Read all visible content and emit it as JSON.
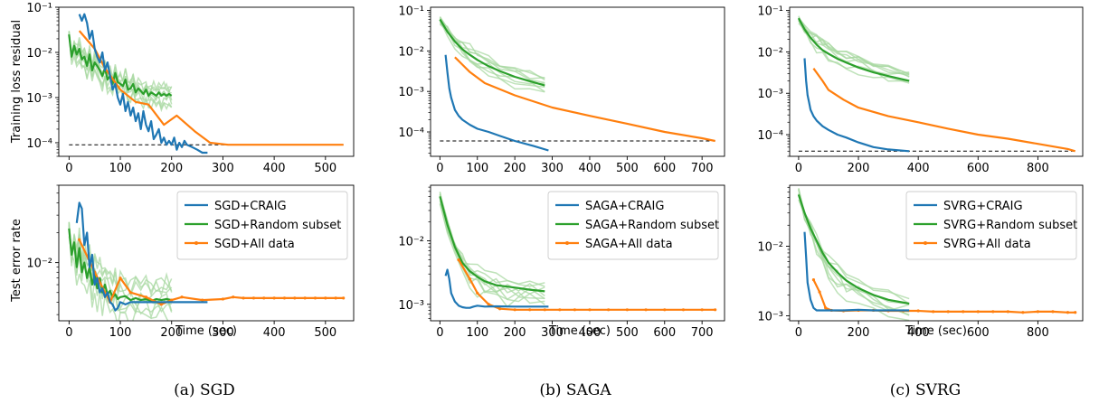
{
  "colors": {
    "craig": "#1f77b4",
    "random": "#2ca02c",
    "random_light": "#a8d8a2",
    "all": "#ff7f0e",
    "opt": "#000000"
  },
  "captions": [
    "(a) SGD",
    "(b) SAGA",
    "(c) SVRG"
  ],
  "labels": {
    "train_ylabel": "Training loss residual",
    "test_ylabel": "Test error rate",
    "xlabel": "Time (sec)"
  },
  "chart_data": [
    {
      "type": "line",
      "panel": "SGD-train",
      "yscale": "log",
      "xlim": [
        -20,
        555
      ],
      "ylim": [
        5e-05,
        0.1
      ],
      "xticks": [
        0,
        100,
        200,
        300,
        400,
        500
      ],
      "yticks": [
        {
          "v": 0.1,
          "label": "10⁻¹"
        },
        {
          "v": 0.01,
          "label": "10⁻²"
        },
        {
          "v": 0.001,
          "label": "10⁻³"
        },
        {
          "v": 0.0001,
          "label": "10⁻⁴"
        }
      ],
      "optimum": {
        "y": 9e-05,
        "x": [
          0,
          535
        ]
      },
      "series": [
        {
          "key": "craig",
          "x": [
            20,
            25,
            30,
            35,
            40,
            45,
            50,
            55,
            60,
            65,
            70,
            75,
            80,
            85,
            90,
            95,
            100,
            105,
            110,
            115,
            120,
            125,
            130,
            135,
            140,
            145,
            150,
            155,
            160,
            165,
            170,
            175,
            180,
            185,
            190,
            195,
            200,
            205,
            210,
            215,
            220,
            225,
            230,
            240,
            250,
            260,
            270
          ],
          "y": [
            0.07,
            0.05,
            0.07,
            0.045,
            0.02,
            0.03,
            0.012,
            0.008,
            0.006,
            0.01,
            0.004,
            0.006,
            0.003,
            0.0015,
            0.002,
            0.001,
            0.0007,
            0.0012,
            0.0005,
            0.0008,
            0.0004,
            0.0006,
            0.0003,
            0.00045,
            0.0002,
            0.0005,
            0.00025,
            0.00018,
            0.0003,
            0.00012,
            0.00015,
            0.0002,
            0.0001,
            0.00013,
            9e-05,
            0.00011,
            9e-05,
            0.00013,
            7e-05,
            0.0001,
            8e-05,
            0.00011,
            9e-05,
            8e-05,
            7e-05,
            6e-05,
            6e-05
          ]
        },
        {
          "key": "random",
          "x": [
            0,
            5,
            10,
            15,
            20,
            25,
            30,
            35,
            40,
            45,
            50,
            55,
            60,
            65,
            70,
            75,
            80,
            85,
            90,
            95,
            100,
            105,
            110,
            115,
            120,
            125,
            130,
            135,
            140,
            145,
            150,
            155,
            160,
            165,
            170,
            175,
            180,
            185,
            190,
            195,
            200
          ],
          "y": [
            0.025,
            0.008,
            0.014,
            0.009,
            0.012,
            0.007,
            0.008,
            0.005,
            0.009,
            0.004,
            0.006,
            0.005,
            0.004,
            0.003,
            0.0045,
            0.0025,
            0.003,
            0.002,
            0.0035,
            0.0022,
            0.002,
            0.0018,
            0.0025,
            0.0015,
            0.0016,
            0.002,
            0.0013,
            0.0016,
            0.0014,
            0.0012,
            0.0015,
            0.0011,
            0.0013,
            0.0012,
            0.0011,
            0.0013,
            0.0011,
            0.0012,
            0.0011,
            0.0012,
            0.0011
          ]
        },
        {
          "key": "all",
          "x": [
            20,
            50,
            70,
            100,
            130,
            155,
            185,
            210,
            245,
            275,
            310,
            340,
            400,
            450,
            500,
            535
          ],
          "y": [
            0.03,
            0.012,
            0.0045,
            0.0015,
            0.0008,
            0.0007,
            0.00025,
            0.0004,
            0.00018,
            0.0001,
            9e-05,
            9e-05,
            9e-05,
            9e-05,
            9e-05,
            9e-05
          ]
        }
      ]
    },
    {
      "type": "line",
      "panel": "SGD-test",
      "yscale": "log",
      "xlim": [
        -20,
        555
      ],
      "ylim": [
        0.0026,
        0.06
      ],
      "xticks": [
        0,
        100,
        200,
        300,
        400,
        500
      ],
      "yticks": [
        {
          "v": 0.01,
          "label": "10⁻²"
        }
      ],
      "series": [
        {
          "key": "craig",
          "x": [
            15,
            20,
            25,
            30,
            35,
            40,
            45,
            50,
            55,
            60,
            65,
            70,
            75,
            80,
            85,
            90,
            95,
            100,
            110,
            120,
            130,
            150,
            200,
            250,
            270
          ],
          "y": [
            0.025,
            0.04,
            0.035,
            0.015,
            0.02,
            0.009,
            0.012,
            0.006,
            0.007,
            0.005,
            0.0055,
            0.0045,
            0.005,
            0.004,
            0.0038,
            0.0033,
            0.0035,
            0.004,
            0.0038,
            0.004,
            0.004,
            0.004,
            0.004,
            0.004,
            0.004
          ]
        },
        {
          "key": "random",
          "x": [
            0,
            5,
            10,
            15,
            20,
            25,
            30,
            35,
            40,
            45,
            50,
            55,
            60,
            65,
            70,
            75,
            80,
            85,
            90,
            95,
            100,
            110,
            120,
            130,
            140,
            150,
            160,
            170,
            180,
            190,
            200
          ],
          "y": [
            0.022,
            0.012,
            0.016,
            0.009,
            0.014,
            0.008,
            0.01,
            0.007,
            0.009,
            0.006,
            0.0075,
            0.0055,
            0.007,
            0.005,
            0.006,
            0.0048,
            0.0052,
            0.0045,
            0.0048,
            0.0043,
            0.0045,
            0.0046,
            0.0042,
            0.0044,
            0.0042,
            0.0043,
            0.0041,
            0.0043,
            0.0042,
            0.0043,
            0.0042
          ]
        },
        {
          "key": "all",
          "x": [
            20,
            50,
            80,
            100,
            120,
            150,
            180,
            200,
            220,
            260,
            300,
            320,
            340,
            360,
            380,
            400,
            420,
            440,
            460,
            480,
            500,
            520,
            535
          ],
          "y": [
            0.017,
            0.008,
            0.004,
            0.007,
            0.005,
            0.0045,
            0.0038,
            0.0042,
            0.0045,
            0.0042,
            0.0043,
            0.0045,
            0.0044,
            0.0044,
            0.0044,
            0.0044,
            0.0044,
            0.0044,
            0.0044,
            0.0044,
            0.0044,
            0.0044,
            0.0044
          ]
        }
      ],
      "legend": [
        "SGD+CRAIG",
        "SGD+Random subset",
        "SGD+All data"
      ]
    },
    {
      "type": "line",
      "panel": "SAGA-train",
      "yscale": "log",
      "xlim": [
        -25,
        760
      ],
      "ylim": [
        2.5e-05,
        0.12
      ],
      "xticks": [
        0,
        100,
        200,
        300,
        400,
        500,
        600,
        700
      ],
      "yticks": [
        {
          "v": 0.1,
          "label": "10⁻¹"
        },
        {
          "v": 0.01,
          "label": "10⁻²"
        },
        {
          "v": 0.001,
          "label": "10⁻³"
        },
        {
          "v": 0.0001,
          "label": "10⁻⁴"
        }
      ],
      "optimum": {
        "y": 6e-05,
        "x": [
          0,
          735
        ]
      },
      "series": [
        {
          "key": "craig",
          "x": [
            15,
            20,
            25,
            30,
            40,
            50,
            60,
            80,
            100,
            130,
            160,
            200,
            250,
            290
          ],
          "y": [
            0.008,
            0.003,
            0.0012,
            0.0007,
            0.00035,
            0.00025,
            0.0002,
            0.00015,
            0.00012,
            0.0001,
            8e-05,
            6e-05,
            4.5e-05,
            3.5e-05
          ]
        },
        {
          "key": "random",
          "x": [
            0,
            20,
            40,
            60,
            80,
            100,
            130,
            160,
            200,
            240,
            280
          ],
          "y": [
            0.06,
            0.03,
            0.017,
            0.011,
            0.008,
            0.006,
            0.0042,
            0.0032,
            0.0023,
            0.0018,
            0.0014
          ]
        },
        {
          "key": "all",
          "x": [
            40,
            80,
            120,
            200,
            300,
            400,
            500,
            600,
            700,
            735
          ],
          "y": [
            0.007,
            0.003,
            0.0016,
            0.0008,
            0.0004,
            0.00025,
            0.00016,
            0.0001,
            7e-05,
            6e-05
          ]
        }
      ]
    },
    {
      "type": "line",
      "panel": "SAGA-test",
      "yscale": "log",
      "xlim": [
        -25,
        760
      ],
      "ylim": [
        0.00055,
        0.075
      ],
      "xticks": [
        0,
        100,
        200,
        300,
        400,
        500,
        600,
        700
      ],
      "yticks": [
        {
          "v": 0.01,
          "label": "10⁻²"
        },
        {
          "v": 0.001,
          "label": "10⁻³"
        }
      ],
      "series": [
        {
          "key": "craig",
          "x": [
            15,
            20,
            25,
            30,
            40,
            50,
            60,
            70,
            80,
            90,
            100,
            120,
            150,
            200,
            250,
            290
          ],
          "y": [
            0.0028,
            0.0035,
            0.0025,
            0.0015,
            0.0011,
            0.00095,
            0.0009,
            0.00088,
            0.00088,
            0.00092,
            0.00095,
            0.00092,
            0.00093,
            0.00092,
            0.00092,
            0.00092
          ]
        },
        {
          "key": "random",
          "x": [
            0,
            20,
            40,
            60,
            80,
            100,
            120,
            150,
            180,
            210,
            240,
            280
          ],
          "y": [
            0.05,
            0.018,
            0.008,
            0.0045,
            0.0033,
            0.0027,
            0.0023,
            0.002,
            0.0019,
            0.0018,
            0.0017,
            0.0016
          ]
        },
        {
          "key": "all",
          "x": [
            50,
            80,
            100,
            130,
            160,
            200,
            240,
            280,
            320,
            360,
            400,
            450,
            500,
            550,
            600,
            650,
            700,
            735
          ],
          "y": [
            0.005,
            0.0025,
            0.0015,
            0.001,
            0.00085,
            0.00082,
            0.00082,
            0.00082,
            0.00082,
            0.00082,
            0.00082,
            0.00082,
            0.00082,
            0.00082,
            0.00082,
            0.00082,
            0.00082,
            0.00082
          ]
        }
      ],
      "legend": [
        "SAGA+CRAIG",
        "SAGA+Random subset",
        "SAGA+All data"
      ]
    },
    {
      "type": "line",
      "panel": "SVRG-train",
      "yscale": "log",
      "xlim": [
        -30,
        950
      ],
      "ylim": [
        3e-05,
        0.12
      ],
      "xticks": [
        0,
        200,
        400,
        600,
        800
      ],
      "yticks": [
        {
          "v": 0.1,
          "label": "10⁻¹"
        },
        {
          "v": 0.01,
          "label": "10⁻²"
        },
        {
          "v": 0.001,
          "label": "10⁻³"
        },
        {
          "v": 0.0001,
          "label": "10⁻⁴"
        }
      ],
      "optimum": {
        "y": 4e-05,
        "x": [
          0,
          925
        ]
      },
      "series": [
        {
          "key": "craig",
          "x": [
            20,
            25,
            30,
            35,
            40,
            50,
            60,
            80,
            100,
            130,
            160,
            200,
            250,
            300,
            370
          ],
          "y": [
            0.007,
            0.002,
            0.0009,
            0.0006,
            0.0004,
            0.00028,
            0.00022,
            0.00016,
            0.00013,
            0.0001,
            8.5e-05,
            6.5e-05,
            5e-05,
            4.4e-05,
            4e-05
          ]
        },
        {
          "key": "random",
          "x": [
            0,
            20,
            40,
            60,
            80,
            100,
            130,
            160,
            200,
            250,
            300,
            370
          ],
          "y": [
            0.065,
            0.035,
            0.022,
            0.015,
            0.011,
            0.009,
            0.0068,
            0.0055,
            0.0042,
            0.0032,
            0.0026,
            0.002
          ]
        },
        {
          "key": "all",
          "x": [
            50,
            80,
            100,
            150,
            200,
            300,
            400,
            500,
            600,
            700,
            800,
            900,
            925
          ],
          "y": [
            0.004,
            0.002,
            0.0012,
            0.0007,
            0.00045,
            0.00028,
            0.0002,
            0.00014,
            0.0001,
            8e-05,
            6e-05,
            4.5e-05,
            4e-05
          ]
        }
      ]
    },
    {
      "type": "line",
      "panel": "SVRG-test",
      "yscale": "log",
      "xlim": [
        -30,
        950
      ],
      "ylim": [
        0.00085,
        0.075
      ],
      "xticks": [
        0,
        200,
        400,
        600,
        800
      ],
      "yticks": [
        {
          "v": 0.01,
          "label": "10⁻²"
        },
        {
          "v": 0.001,
          "label": "10⁻³"
        }
      ],
      "series": [
        {
          "key": "craig",
          "x": [
            20,
            25,
            30,
            40,
            50,
            60,
            80,
            100,
            150,
            200,
            250,
            300,
            370
          ],
          "y": [
            0.016,
            0.007,
            0.003,
            0.0017,
            0.0013,
            0.0012,
            0.0012,
            0.0012,
            0.0012,
            0.00122,
            0.0012,
            0.0012,
            0.0012
          ]
        },
        {
          "key": "random",
          "x": [
            0,
            20,
            40,
            60,
            80,
            100,
            130,
            160,
            200,
            250,
            300,
            370
          ],
          "y": [
            0.055,
            0.03,
            0.018,
            0.012,
            0.008,
            0.0058,
            0.0042,
            0.0032,
            0.0025,
            0.002,
            0.0017,
            0.0015
          ]
        },
        {
          "key": "all",
          "x": [
            50,
            70,
            90,
            110,
            150,
            200,
            250,
            300,
            350,
            400,
            450,
            500,
            550,
            600,
            650,
            700,
            750,
            800,
            850,
            900,
            925
          ],
          "y": [
            0.0033,
            0.0022,
            0.0013,
            0.0012,
            0.00118,
            0.0012,
            0.0012,
            0.00118,
            0.00118,
            0.00118,
            0.00115,
            0.00115,
            0.00115,
            0.00115,
            0.00115,
            0.00115,
            0.00112,
            0.00115,
            0.00115,
            0.00112,
            0.00112
          ]
        }
      ],
      "legend": [
        "SVRG+CRAIG",
        "SVRG+Random subset",
        "SVRG+All data"
      ]
    }
  ]
}
